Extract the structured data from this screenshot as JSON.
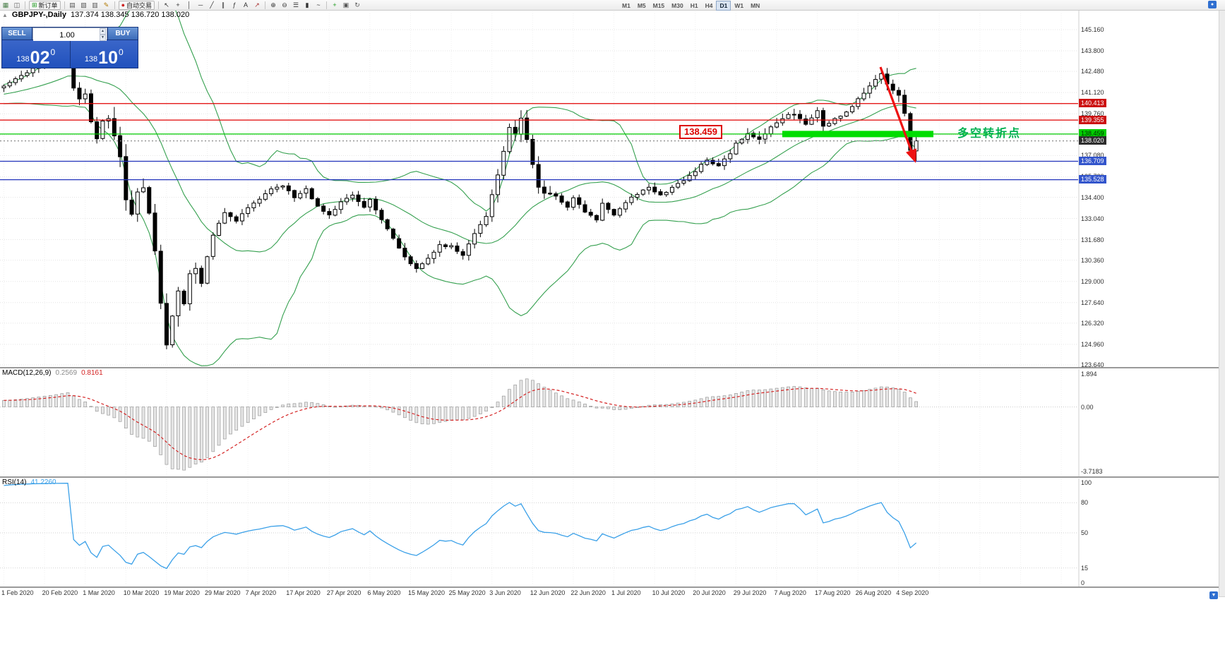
{
  "toolbar": {
    "groups": [
      {
        "items": [
          {
            "name": "new-chart-icon",
            "glyph": "▦",
            "color": "#4a7f4a"
          },
          {
            "name": "profiles-icon",
            "glyph": "◫",
            "color": "#555555"
          }
        ]
      },
      {
        "items": [
          {
            "name": "new-order-button",
            "glyph": "⊞",
            "color": "#1a9a1a",
            "label": "新订单",
            "button": true
          }
        ]
      },
      {
        "items": [
          {
            "name": "market-watch-icon",
            "glyph": "▤",
            "color": "#555555"
          },
          {
            "name": "navigator-icon",
            "glyph": "▧",
            "color": "#555555"
          },
          {
            "name": "terminal-icon",
            "glyph": "▥",
            "color": "#555555"
          },
          {
            "name": "metaeditor-icon",
            "glyph": "✎",
            "color": "#b07800"
          }
        ]
      },
      {
        "items": [
          {
            "name": "autotrading-button",
            "glyph": "●",
            "color": "#cc2222",
            "label": "自动交易",
            "button": true
          }
        ]
      },
      {
        "items": [
          {
            "name": "cursor-icon",
            "glyph": "↖",
            "color": "#333333"
          },
          {
            "name": "crosshair-icon",
            "glyph": "+",
            "color": "#333333"
          },
          {
            "name": "vertical-line-icon",
            "glyph": "│",
            "color": "#333333"
          },
          {
            "name": "horizontal-line-icon",
            "glyph": "─",
            "color": "#333333"
          },
          {
            "name": "trendline-icon",
            "glyph": "╱",
            "color": "#333333"
          },
          {
            "name": "channel-icon",
            "glyph": "∥",
            "color": "#333333"
          },
          {
            "name": "fibonacci-icon",
            "glyph": "ƒ",
            "color": "#333333"
          },
          {
            "name": "text-label-icon",
            "glyph": "A",
            "color": "#333333"
          },
          {
            "name": "arrows-icon",
            "glyph": "↗",
            "color": "#aa3333"
          }
        ]
      },
      {
        "items": [
          {
            "name": "zoom-in-icon",
            "glyph": "⊕",
            "color": "#333333"
          },
          {
            "name": "zoom-out-icon",
            "glyph": "⊖",
            "color": "#333333"
          },
          {
            "name": "bar-chart-icon",
            "glyph": "☰",
            "color": "#333333"
          },
          {
            "name": "candle-chart-icon",
            "glyph": "▮",
            "color": "#333333"
          },
          {
            "name": "line-chart-icon",
            "glyph": "~",
            "color": "#333333"
          }
        ]
      },
      {
        "items": [
          {
            "name": "indicators-icon",
            "glyph": "+",
            "color": "#1a9a1a"
          },
          {
            "name": "templates-icon",
            "glyph": "▣",
            "color": "#555555"
          },
          {
            "name": "refresh-icon",
            "glyph": "↻",
            "color": "#555555"
          }
        ]
      }
    ],
    "new_order_label": "新订单",
    "autotrading_label": "自动交易",
    "timeframes": [
      "M1",
      "M5",
      "M15",
      "M30",
      "H1",
      "H4",
      "D1",
      "W1",
      "MN"
    ],
    "active_timeframe": "D1"
  },
  "chart_header": {
    "symbol_period": "GBPJPY-,Daily",
    "ohlc_text": "137.374 138.345 136.720 138.020",
    "collapse_glyph": "▲"
  },
  "one_click": {
    "sell_label": "SELL",
    "buy_label": "BUY",
    "volume": "1.00",
    "sell_price_main": "138",
    "sell_price_big": "02",
    "sell_price_sup": "0",
    "buy_price_main": "138",
    "buy_price_big": "10",
    "buy_price_sup": "0"
  },
  "annotations": {
    "level_callout": "138.459",
    "cn_note": "多空转折点"
  },
  "macd_panel": {
    "label": "MACD(12,26,9)",
    "value_main": "0.2569",
    "value_signal": "0.8161",
    "axis_max": "1.894",
    "axis_zero": "0.00",
    "axis_min": "-3.7183"
  },
  "rsi_panel": {
    "label": "RSI(14)",
    "value": "41.2260",
    "axis_labels": [
      "100",
      "80",
      "50",
      "15",
      "0"
    ],
    "axis_values": [
      100,
      80,
      50,
      15,
      0
    ]
  },
  "price_axis_labels": [
    "145.160",
    "143.800",
    "142.480",
    "141.120",
    "139.760",
    "138.400",
    "137.080",
    "135.720",
    "134.400",
    "133.040",
    "131.680",
    "130.360",
    "129.000",
    "127.640",
    "126.320",
    "124.960",
    "123.640"
  ],
  "date_axis_labels": [
    "1 Feb 2020",
    "20 Feb 2020",
    "1 Mar 2020",
    "10 Mar 2020",
    "19 Mar 2020",
    "29 Mar 2020",
    "7 Apr 2020",
    "17 Apr 2020",
    "27 Apr 2020",
    "6 May 2020",
    "15 May 2020",
    "25 May 2020",
    "3 Jun 2020",
    "12 Jun 2020",
    "22 Jun 2020",
    "1 Jul 2020",
    "10 Jul 2020",
    "20 Jul 2020",
    "29 Jul 2020",
    "7 Aug 2020",
    "17 Aug 2020",
    "26 Aug 2020",
    "4 Sep 2020"
  ],
  "levels": [
    {
      "price": 140.413,
      "label": "140.413",
      "line_color": "#e00000",
      "line_style": "solid",
      "tag_bg": "#cc1111",
      "tag_fg": "#ffffff"
    },
    {
      "price": 139.355,
      "label": "139.355",
      "line_color": "#e00000",
      "line_style": "solid",
      "tag_bg": "#cc1111",
      "tag_fg": "#ffffff"
    },
    {
      "price": 138.459,
      "label": "138.459",
      "line_color": "#00cc00",
      "line_style": "solid",
      "tag_bg": "#00cc00",
      "tag_fg": "#003300"
    },
    {
      "price": 138.02,
      "label": "138.020",
      "line_color": "#8a8a8a",
      "line_style": "dotted",
      "tag_bg": "#2e2e2e",
      "tag_fg": "#ffffff",
      "current": true
    },
    {
      "price": 136.709,
      "label": "136.709",
      "line_color": "#2233bb",
      "line_style": "solid",
      "tag_bg": "#3355cc",
      "tag_fg": "#ffffff"
    },
    {
      "price": 135.528,
      "label": "135.528",
      "line_color": "#2233bb",
      "line_style": "solid",
      "tag_bg": "#3355cc",
      "tag_fg": "#ffffff"
    }
  ],
  "chart_data": {
    "type": "candlestick",
    "symbol": "GBPJPY-",
    "period": "Daily",
    "current_ohlc": {
      "open": 137.374,
      "high": 138.345,
      "low": 136.72,
      "close": 138.02
    },
    "y_range": [
      123.64,
      145.16
    ],
    "num_candles": 158,
    "close_anchors": [
      [
        -40,
        139.0
      ],
      [
        -30,
        139.8
      ],
      [
        -20,
        140.4
      ],
      [
        -10,
        141.0
      ],
      [
        0,
        141.5
      ],
      [
        4,
        142.4
      ],
      [
        8,
        143.3
      ],
      [
        11,
        144.1
      ],
      [
        12,
        141.3
      ],
      [
        13,
        140.7
      ],
      [
        14,
        141.0
      ],
      [
        15,
        139.3
      ],
      [
        16,
        138.1
      ],
      [
        17,
        139.2
      ],
      [
        18,
        139.5
      ],
      [
        19,
        138.2
      ],
      [
        20,
        137.0
      ],
      [
        21,
        134.3
      ],
      [
        22,
        133.5
      ],
      [
        23,
        134.9
      ],
      [
        24,
        135.1
      ],
      [
        25,
        133.4
      ],
      [
        26,
        131.0
      ],
      [
        27,
        127.6
      ],
      [
        28,
        124.9
      ],
      [
        29,
        126.7
      ],
      [
        30,
        128.3
      ],
      [
        31,
        127.5
      ],
      [
        32,
        129.3
      ],
      [
        33,
        130.0
      ],
      [
        34,
        129.0
      ],
      [
        35,
        130.7
      ],
      [
        36,
        131.9
      ],
      [
        37,
        132.7
      ],
      [
        38,
        133.4
      ],
      [
        40,
        132.9
      ],
      [
        42,
        133.7
      ],
      [
        44,
        134.3
      ],
      [
        46,
        134.9
      ],
      [
        48,
        135.1
      ],
      [
        50,
        134.4
      ],
      [
        52,
        134.9
      ],
      [
        54,
        133.8
      ],
      [
        56,
        133.2
      ],
      [
        58,
        134.1
      ],
      [
        60,
        134.5
      ],
      [
        62,
        133.7
      ],
      [
        63,
        134.3
      ],
      [
        65,
        133.0
      ],
      [
        67,
        131.7
      ],
      [
        69,
        130.5
      ],
      [
        71,
        129.8
      ],
      [
        73,
        130.5
      ],
      [
        75,
        131.3
      ],
      [
        77,
        131.3
      ],
      [
        79,
        130.7
      ],
      [
        81,
        132.0
      ],
      [
        83,
        133.2
      ],
      [
        84,
        134.5
      ],
      [
        85,
        135.9
      ],
      [
        86,
        137.4
      ],
      [
        87,
        139.0
      ],
      [
        88,
        138.4
      ],
      [
        89,
        139.4
      ],
      [
        90,
        138.1
      ],
      [
        91,
        136.4
      ],
      [
        92,
        135.1
      ],
      [
        93,
        134.7
      ],
      [
        95,
        134.4
      ],
      [
        97,
        133.7
      ],
      [
        98,
        134.4
      ],
      [
        100,
        133.5
      ],
      [
        102,
        132.9
      ],
      [
        103,
        134.0
      ],
      [
        105,
        133.2
      ],
      [
        107,
        134.1
      ],
      [
        109,
        134.6
      ],
      [
        111,
        135.1
      ],
      [
        113,
        134.5
      ],
      [
        115,
        135.0
      ],
      [
        117,
        135.5
      ],
      [
        119,
        136.1
      ],
      [
        121,
        136.8
      ],
      [
        123,
        136.4
      ],
      [
        125,
        137.2
      ],
      [
        126,
        137.9
      ],
      [
        128,
        138.5
      ],
      [
        130,
        138.1
      ],
      [
        132,
        139.0
      ],
      [
        134,
        139.5
      ],
      [
        136,
        139.8
      ],
      [
        138,
        139.1
      ],
      [
        140,
        140.0
      ],
      [
        141,
        138.9
      ],
      [
        143,
        139.4
      ],
      [
        145,
        139.9
      ],
      [
        147,
        140.7
      ],
      [
        149,
        141.5
      ],
      [
        151,
        142.3
      ],
      [
        152,
        141.7
      ],
      [
        153,
        141.2
      ],
      [
        154,
        141.0
      ],
      [
        155,
        139.7
      ],
      [
        156,
        137.4
      ],
      [
        157,
        138.02
      ]
    ],
    "volatility_segments": [
      [
        -40,
        11,
        0.45
      ],
      [
        12,
        18,
        0.8
      ],
      [
        19,
        35,
        1.3
      ],
      [
        36,
        63,
        0.5
      ],
      [
        64,
        83,
        0.5
      ],
      [
        84,
        95,
        0.85
      ],
      [
        96,
        125,
        0.45
      ],
      [
        126,
        150,
        0.55
      ],
      [
        151,
        157,
        0.7
      ]
    ],
    "candle_colors": {
      "bull": "#ffffff",
      "bear": "#000000",
      "outline": "#000000"
    },
    "indicators": {
      "bollinger": {
        "period": 20,
        "deviations": 2,
        "color": "#35a04f"
      },
      "macd": {
        "fast": 12,
        "slow": 26,
        "signal": 9,
        "main_value": 0.2569,
        "signal_value": 0.8161,
        "range": [
          -3.7183,
          1.894
        ],
        "hist_fill": "#e6e6e6",
        "hist_stroke": "#9a9a9a",
        "signal_color": "#d42222"
      },
      "rsi": {
        "period": 14,
        "value": 41.226,
        "levels": [
          15,
          50,
          80
        ],
        "color": "#3aa0e8",
        "range": [
          0,
          100
        ]
      }
    },
    "objects": {
      "support_bar": {
        "price": 138.459,
        "color": "#00dd00"
      },
      "arrow": {
        "color": "#ee1111"
      }
    }
  }
}
